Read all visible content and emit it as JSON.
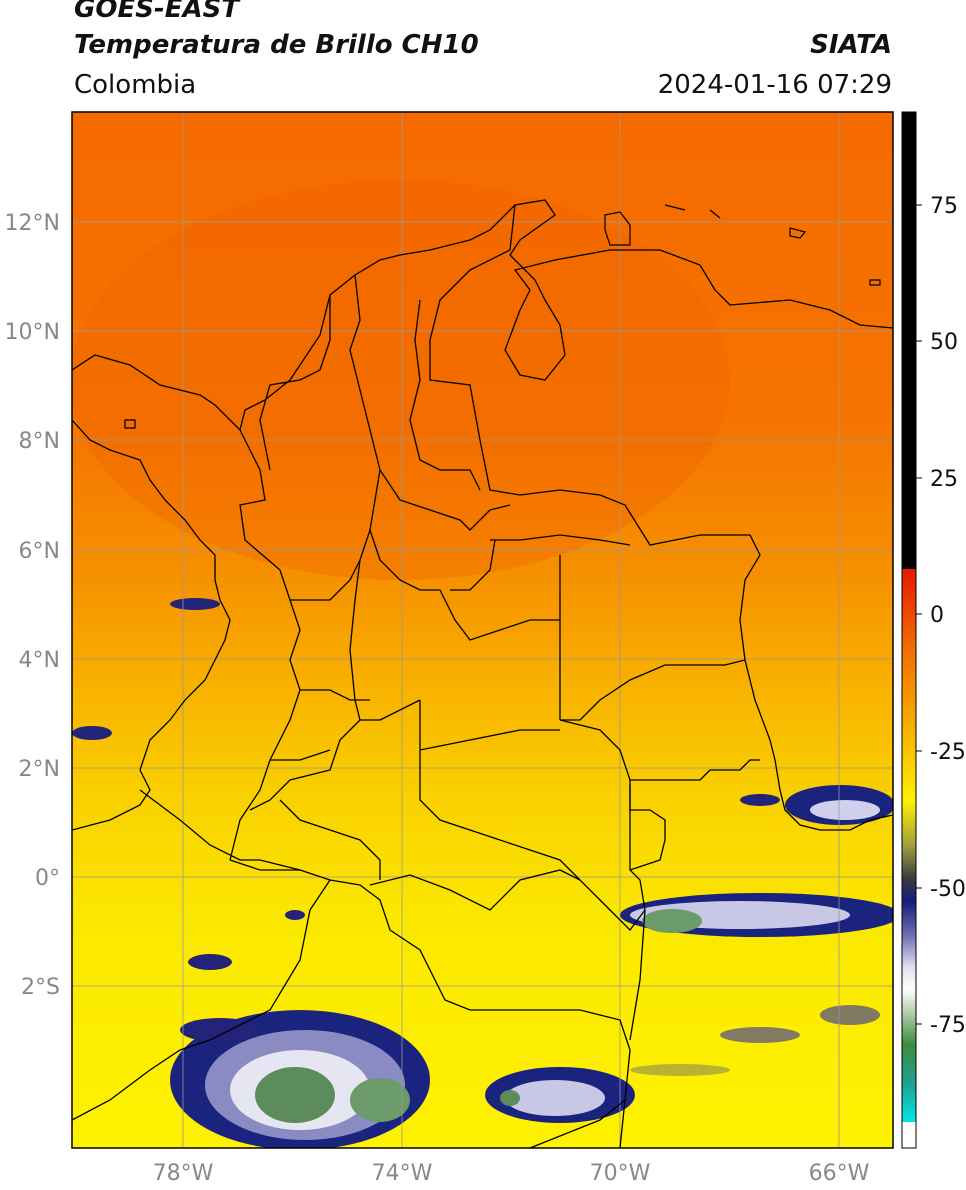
{
  "header": {
    "satellite": "GOES-EAST",
    "product": "Temperatura de Brillo CH10",
    "organization": "SIATA",
    "region": "Colombia",
    "timestamp": "2024-01-16 07:29"
  },
  "map": {
    "lat_labels": [
      "12°N",
      "10°N",
      "8°N",
      "6°N",
      "4°N",
      "2°N",
      "0°",
      "2°S"
    ],
    "lon_labels": [
      "78°W",
      "74°W",
      "70°W",
      "66°W"
    ],
    "extent": {
      "lon_min": -80,
      "lon_max": -65,
      "lat_min": -5,
      "lat_max": 14
    }
  },
  "colorbar": {
    "ticks": [
      "75",
      "50",
      "25",
      "0",
      "-25",
      "-50",
      "-75"
    ],
    "range": [
      -95,
      90
    ]
  }
}
